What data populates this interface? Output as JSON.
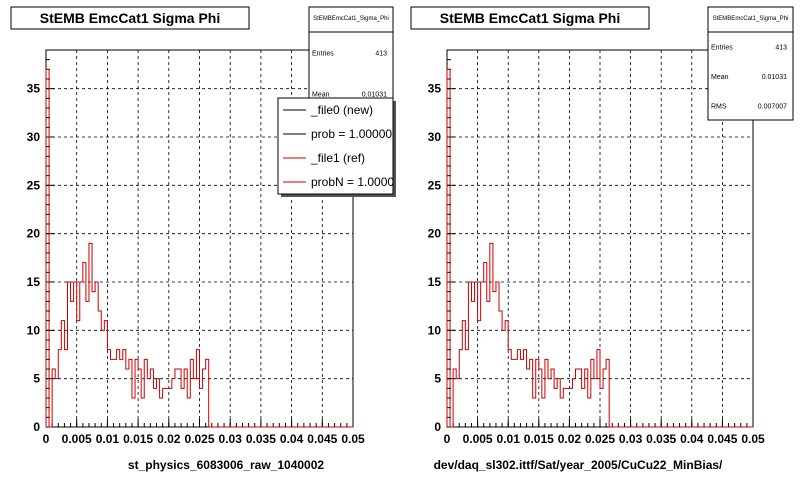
{
  "chart_data": [
    {
      "type": "histogram",
      "title": "StEMB EmcCat1 Sigma Phi",
      "xlabel": "st_physics_6083006_raw_1040002",
      "x_ticks": [
        "0",
        "0.005",
        "0.01",
        "0.015",
        "0.02",
        "0.025",
        "0.03",
        "0.035",
        "0.04",
        "0.045",
        "0.05"
      ],
      "y_ticks": [
        "0",
        "5",
        "10",
        "15",
        "20",
        "25",
        "30",
        "35"
      ],
      "xlim": [
        0,
        0.05
      ],
      "ylim": [
        0,
        39
      ],
      "grid": true,
      "bin_width": 0.0005,
      "stats": {
        "name": "StEMBEmcCat1_Sigma_Phi",
        "rows": [
          {
            "label": "Entries",
            "value": "413"
          },
          {
            "label": "Mean",
            "value": "0.01031"
          }
        ]
      },
      "legend": {
        "placement": "top-right",
        "entries": [
          {
            "label": "_file0 (new)",
            "color": "#000000"
          },
          {
            "label": "prob = 1.000000",
            "color": "#000000"
          },
          {
            "label": "_file1 (ref)",
            "color": "#cc0000"
          },
          {
            "label": "probN = 1.000000",
            "color": "#cc0000"
          }
        ]
      },
      "series": [
        {
          "color": "#cc0000",
          "values": [
            37,
            0,
            6,
            5,
            8,
            11,
            8,
            15,
            13,
            15,
            11,
            15,
            17,
            13,
            19,
            14,
            15,
            12,
            10,
            11,
            8,
            7,
            7,
            8,
            7,
            8,
            6,
            7,
            3,
            7,
            6,
            3,
            7,
            5,
            6,
            4,
            5,
            3,
            4,
            4,
            4,
            5,
            6,
            6,
            4,
            6,
            3,
            7,
            5,
            8,
            4,
            6,
            7,
            0
          ]
        }
      ]
    },
    {
      "type": "histogram",
      "title": "StEMB EmcCat1 Sigma Phi",
      "xlabel": "dev/daq_sl302.ittf/Sat/year_2005/CuCu22_MinBias/",
      "x_ticks": [
        "0",
        "0.005",
        "0.01",
        "0.015",
        "0.02",
        "0.025",
        "0.03",
        "0.035",
        "0.04",
        "0.045",
        "0.05"
      ],
      "y_ticks": [
        "0",
        "5",
        "10",
        "15",
        "20",
        "25",
        "30",
        "35"
      ],
      "xlim": [
        0,
        0.05
      ],
      "ylim": [
        0,
        39
      ],
      "grid": true,
      "bin_width": 0.0005,
      "stats": {
        "name": "StEMBEmcCat1_Sigma_Phi",
        "rows": [
          {
            "label": "Entries",
            "value": "413"
          },
          {
            "label": "Mean",
            "value": "0.01031"
          },
          {
            "label": "RMS",
            "value": "0.007007"
          }
        ]
      },
      "series": [
        {
          "color": "#cc0000",
          "values": [
            37,
            0,
            6,
            5,
            8,
            11,
            8,
            15,
            13,
            15,
            11,
            15,
            17,
            13,
            19,
            14,
            15,
            12,
            10,
            11,
            8,
            7,
            7,
            8,
            7,
            8,
            6,
            7,
            3,
            7,
            6,
            3,
            7,
            5,
            6,
            4,
            5,
            3,
            4,
            4,
            4,
            5,
            6,
            6,
            4,
            6,
            3,
            7,
            5,
            8,
            4,
            6,
            7,
            0
          ]
        }
      ]
    }
  ]
}
